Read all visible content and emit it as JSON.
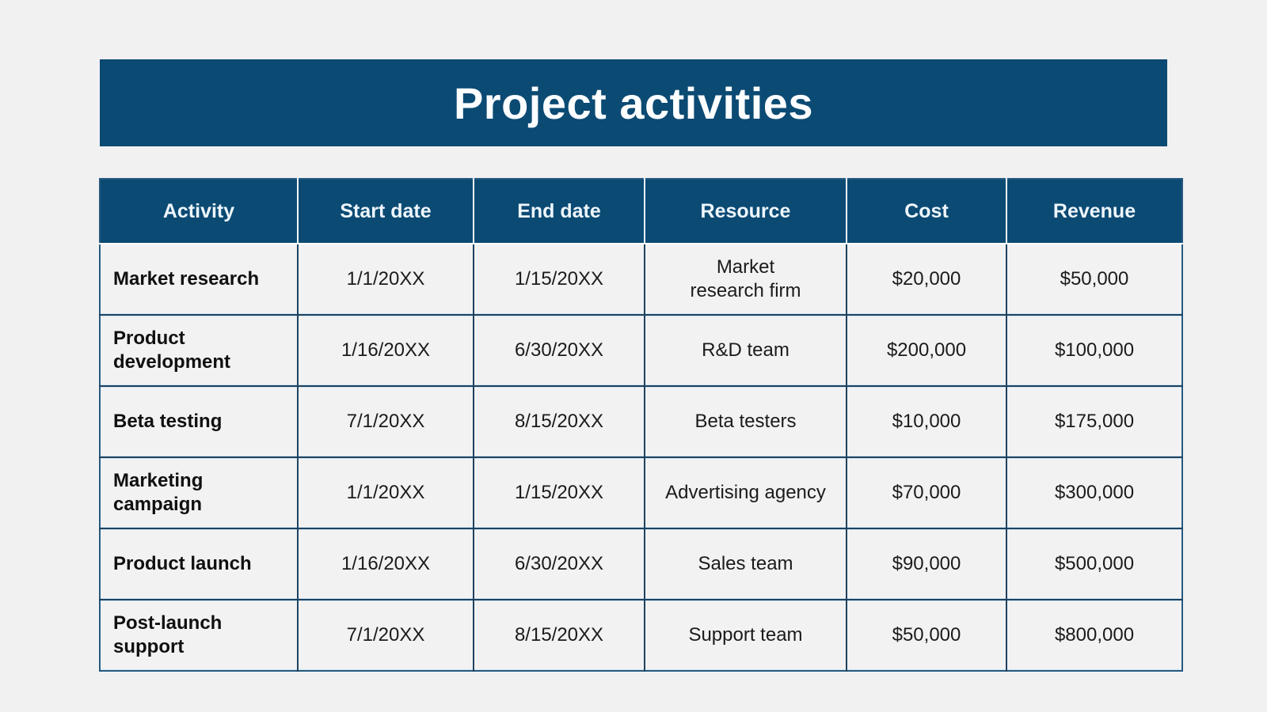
{
  "banner": {
    "title": "Project activities",
    "background": "#0b4a73",
    "text_color": "#fcfeff"
  },
  "table": {
    "columns": [
      {
        "key": "activity",
        "label": "Activity"
      },
      {
        "key": "start_date",
        "label": "Start date"
      },
      {
        "key": "end_date",
        "label": "End date"
      },
      {
        "key": "resource",
        "label": "Resource"
      },
      {
        "key": "cost",
        "label": "Cost"
      },
      {
        "key": "revenue",
        "label": "Revenue"
      }
    ],
    "rows": [
      {
        "activity": "Market research",
        "start_date": "1/1/20XX",
        "end_date": "1/15/20XX",
        "resource": "Market\nresearch firm",
        "cost": "$20,000",
        "revenue": "$50,000"
      },
      {
        "activity": "Product\ndevelopment",
        "start_date": "1/16/20XX",
        "end_date": "6/30/20XX",
        "resource": "R&D team",
        "cost": "$200,000",
        "revenue": "$100,000"
      },
      {
        "activity": "Beta testing",
        "start_date": "7/1/20XX",
        "end_date": "8/15/20XX",
        "resource": "Beta testers",
        "cost": "$10,000",
        "revenue": "$175,000"
      },
      {
        "activity": "Marketing\ncampaign",
        "start_date": "1/1/20XX",
        "end_date": "1/15/20XX",
        "resource": "Advertising agency",
        "cost": "$70,000",
        "revenue": "$300,000"
      },
      {
        "activity": "Product launch",
        "start_date": "1/16/20XX",
        "end_date": "6/30/20XX",
        "resource": "Sales team",
        "cost": "$90,000",
        "revenue": "$500,000"
      },
      {
        "activity": "Post-launch\nsupport",
        "start_date": "7/1/20XX",
        "end_date": "8/15/20XX",
        "resource": "Support team",
        "cost": "$50,000",
        "revenue": "$800,000"
      }
    ],
    "colors": {
      "header_background": "#0b4a73",
      "header_text": "#eef6fc",
      "cell_background": "#f2f2f3",
      "inner_border": "#1f4260",
      "inner_border_accent": "#cfe2f0",
      "outer_border": "#265a80"
    }
  }
}
